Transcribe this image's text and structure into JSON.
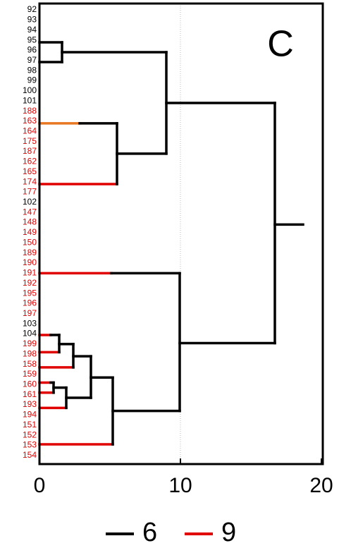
{
  "chart_data": {
    "type": "dendrogram",
    "annotation": "C",
    "xlim": [
      0,
      20
    ],
    "xticks": [
      0,
      10,
      20
    ],
    "grid_x": [
      10
    ],
    "leaves": [
      {
        "name": "92",
        "color": "#000000"
      },
      {
        "name": "93",
        "color": "#000000"
      },
      {
        "name": "94",
        "color": "#000000"
      },
      {
        "name": "95",
        "color": "#000000"
      },
      {
        "name": "96",
        "color": "#000000"
      },
      {
        "name": "97",
        "color": "#000000"
      },
      {
        "name": "98",
        "color": "#000000"
      },
      {
        "name": "99",
        "color": "#000000"
      },
      {
        "name": "100",
        "color": "#000000"
      },
      {
        "name": "101",
        "color": "#000000"
      },
      {
        "name": "188",
        "color": "#e00000"
      },
      {
        "name": "163",
        "color": "#e00000"
      },
      {
        "name": "164",
        "color": "#e00000"
      },
      {
        "name": "175",
        "color": "#e00000"
      },
      {
        "name": "187",
        "color": "#e00000"
      },
      {
        "name": "162",
        "color": "#e00000"
      },
      {
        "name": "165",
        "color": "#e00000"
      },
      {
        "name": "174",
        "color": "#e00000"
      },
      {
        "name": "177",
        "color": "#e00000"
      },
      {
        "name": "102",
        "color": "#000000"
      },
      {
        "name": "147",
        "color": "#e00000"
      },
      {
        "name": "148",
        "color": "#e00000"
      },
      {
        "name": "149",
        "color": "#e00000"
      },
      {
        "name": "150",
        "color": "#e00000"
      },
      {
        "name": "189",
        "color": "#e00000"
      },
      {
        "name": "190",
        "color": "#e00000"
      },
      {
        "name": "191",
        "color": "#e00000"
      },
      {
        "name": "192",
        "color": "#e00000"
      },
      {
        "name": "195",
        "color": "#e00000"
      },
      {
        "name": "196",
        "color": "#e00000"
      },
      {
        "name": "197",
        "color": "#e00000"
      },
      {
        "name": "103",
        "color": "#000000"
      },
      {
        "name": "104",
        "color": "#000000"
      },
      {
        "name": "199",
        "color": "#e00000"
      },
      {
        "name": "198",
        "color": "#e00000"
      },
      {
        "name": "158",
        "color": "#e00000"
      },
      {
        "name": "159",
        "color": "#e00000"
      },
      {
        "name": "160",
        "color": "#e00000"
      },
      {
        "name": "161",
        "color": "#e00000"
      },
      {
        "name": "193",
        "color": "#e00000"
      },
      {
        "name": "194",
        "color": "#e00000"
      },
      {
        "name": "151",
        "color": "#e00000"
      },
      {
        "name": "152",
        "color": "#e00000"
      },
      {
        "name": "153",
        "color": "#e00000"
      },
      {
        "name": "154",
        "color": "#e00000"
      }
    ],
    "segments": [
      {
        "x": [
          0,
          1.6
        ],
        "y": [
          3.2,
          3.2
        ],
        "color": "#000000"
      },
      {
        "x": [
          0,
          1.6
        ],
        "y": [
          5.15,
          5.15
        ],
        "color": "#000000"
      },
      {
        "x": [
          1.6,
          1.6
        ],
        "y": [
          3.2,
          5.15
        ],
        "color": "#000000"
      },
      {
        "x": [
          1.6,
          9.0
        ],
        "y": [
          4.18,
          4.18
        ],
        "color": "#000000"
      },
      {
        "x": [
          9.0,
          9.0
        ],
        "y": [
          4.18,
          14.2
        ],
        "color": "#000000"
      },
      {
        "x": [
          0,
          2.85
        ],
        "y": [
          11.2,
          11.2
        ],
        "color": "#e87722"
      },
      {
        "x": [
          2.85,
          5.5
        ],
        "y": [
          11.2,
          11.2
        ],
        "color": "#000000"
      },
      {
        "x": [
          0,
          5.5
        ],
        "y": [
          17.2,
          17.2
        ],
        "color": "#e00000"
      },
      {
        "x": [
          5.5,
          5.5
        ],
        "y": [
          11.2,
          17.2
        ],
        "color": "#000000"
      },
      {
        "x": [
          5.5,
          9.0
        ],
        "y": [
          14.2,
          14.2
        ],
        "color": "#000000"
      },
      {
        "x": [
          9.0,
          16.7
        ],
        "y": [
          9.19,
          9.19
        ],
        "color": "#000000"
      },
      {
        "x": [
          16.7,
          16.7
        ],
        "y": [
          9.19,
          32.9
        ],
        "color": "#000000"
      },
      {
        "x": [
          16.7,
          18.7
        ],
        "y": [
          21.2,
          21.2
        ],
        "color": "#000000"
      },
      {
        "x": [
          0,
          5.1
        ],
        "y": [
          26.0,
          26.0
        ],
        "color": "#e00000"
      },
      {
        "x": [
          5.1,
          9.95
        ],
        "y": [
          26.0,
          26.0
        ],
        "color": "#000000"
      },
      {
        "x": [
          9.95,
          9.95
        ],
        "y": [
          26.0,
          39.6
        ],
        "color": "#000000"
      },
      {
        "x": [
          9.95,
          16.7
        ],
        "y": [
          32.9,
          32.9
        ],
        "color": "#000000"
      },
      {
        "x": [
          0,
          0.8
        ],
        "y": [
          32.1,
          32.1
        ],
        "color": "#e00000"
      },
      {
        "x": [
          0.8,
          1.4
        ],
        "y": [
          32.1,
          32.1
        ],
        "color": "#000000"
      },
      {
        "x": [
          0,
          1.4
        ],
        "y": [
          33.8,
          33.8
        ],
        "color": "#e00000"
      },
      {
        "x": [
          1.4,
          1.4
        ],
        "y": [
          32.1,
          33.8
        ],
        "color": "#000000"
      },
      {
        "x": [
          1.4,
          2.4
        ],
        "y": [
          33.0,
          33.0
        ],
        "color": "#000000"
      },
      {
        "x": [
          0,
          2.4
        ],
        "y": [
          35.3,
          35.3
        ],
        "color": "#e00000"
      },
      {
        "x": [
          2.4,
          2.4
        ],
        "y": [
          33.0,
          35.3
        ],
        "color": "#000000"
      },
      {
        "x": [
          2.4,
          3.65
        ],
        "y": [
          34.2,
          34.2
        ],
        "color": "#000000"
      },
      {
        "x": [
          0,
          0.8
        ],
        "y": [
          36.8,
          36.8
        ],
        "color": "#e00000"
      },
      {
        "x": [
          0.8,
          1.0
        ],
        "y": [
          36.8,
          36.8
        ],
        "color": "#000000"
      },
      {
        "x": [
          0,
          1.0
        ],
        "y": [
          37.8,
          37.8
        ],
        "color": "#e00000"
      },
      {
        "x": [
          1.0,
          1.0
        ],
        "y": [
          36.8,
          37.8
        ],
        "color": "#000000"
      },
      {
        "x": [
          1.0,
          1.9
        ],
        "y": [
          37.3,
          37.3
        ],
        "color": "#000000"
      },
      {
        "x": [
          0,
          1.9
        ],
        "y": [
          39.3,
          39.3
        ],
        "color": "#e00000"
      },
      {
        "x": [
          1.9,
          1.9
        ],
        "y": [
          37.3,
          39.3
        ],
        "color": "#000000"
      },
      {
        "x": [
          1.9,
          3.65
        ],
        "y": [
          38.3,
          38.3
        ],
        "color": "#000000"
      },
      {
        "x": [
          3.65,
          3.65
        ],
        "y": [
          34.2,
          38.3
        ],
        "color": "#000000"
      },
      {
        "x": [
          3.65,
          5.2
        ],
        "y": [
          36.3,
          36.3
        ],
        "color": "#000000"
      },
      {
        "x": [
          0,
          5.2
        ],
        "y": [
          42.9,
          42.9
        ],
        "color": "#e00000"
      },
      {
        "x": [
          5.2,
          5.2
        ],
        "y": [
          36.3,
          42.9
        ],
        "color": "#000000"
      },
      {
        "x": [
          5.2,
          9.95
        ],
        "y": [
          39.6,
          39.6
        ],
        "color": "#000000"
      }
    ],
    "series": [
      {
        "name": "6",
        "color": "#000000"
      },
      {
        "name": "9",
        "color": "#e00000"
      }
    ]
  }
}
